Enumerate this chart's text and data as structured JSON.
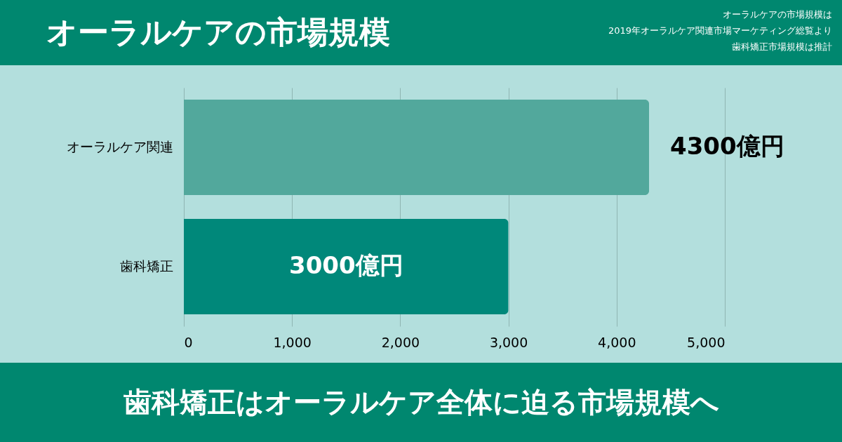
{
  "chart_data": {
    "type": "bar",
    "orientation": "horizontal",
    "title": "オーラルケアの市場規模",
    "subtitle": "歯科矯正はオーラルケア全体に迫る市場規模へ",
    "annotations": [
      "オーラルケアの市場規模は",
      "2019年オーラルケア関連市場マーケティング総覧より",
      "歯科矯正市場規模は推計"
    ],
    "categories": [
      "オーラルケア関連",
      "歯科矯正"
    ],
    "values": [
      4300,
      3000
    ],
    "value_labels": [
      "4300億円",
      "3000億円"
    ],
    "colors": [
      "#52a89c",
      "#00887a"
    ],
    "xlim": [
      0,
      5000
    ],
    "xticks": [
      0,
      {
        "value": 1000,
        "label": "1,000"
      },
      {
        "value": 2000,
        "label": "2,000"
      },
      {
        "value": 3000,
        "label": "3,000"
      },
      {
        "value": 4000,
        "label": "4,000"
      },
      {
        "value": 5000,
        "label": "5,000"
      }
    ],
    "grid": "x",
    "legend": false
  }
}
